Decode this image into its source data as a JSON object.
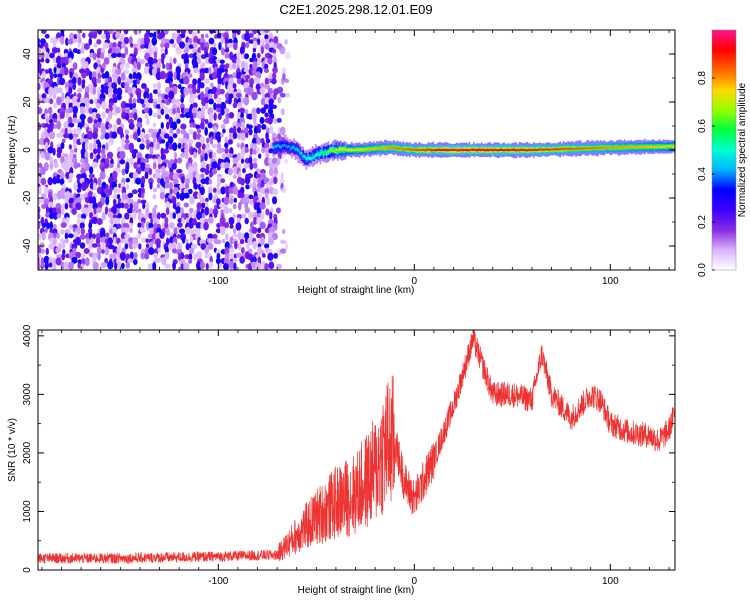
{
  "title": "C2E1.2025.298.12.01.E09",
  "chart_data": [
    {
      "type": "heatmap",
      "title": "C2E1.2025.298.12.01.E09",
      "xlabel": "Height of straight line (km)",
      "ylabel": "Frequency (Hz)",
      "xlim": [
        -192,
        133
      ],
      "ylim": [
        -50,
        50
      ],
      "xticks": [
        -100,
        0,
        100
      ],
      "yticks": [
        -40,
        -20,
        0,
        20,
        40
      ],
      "colorbar": {
        "label": "Normalized spectral amplitude",
        "range": [
          0,
          1
        ],
        "ticks": [
          0.0,
          0.2,
          0.4,
          0.6,
          0.8
        ],
        "colors": [
          "#ffffff",
          "#d9b3ff",
          "#8a2be2",
          "#3c00ff",
          "#0000ff",
          "#00b4ff",
          "#00ffd2",
          "#00ff3c",
          "#96ff00",
          "#ffd700",
          "#ff6400",
          "#ff0000",
          "#ff1493"
        ]
      },
      "noise_region": {
        "x_from": -192,
        "x_to": -72,
        "max_amplitude": 0.3
      },
      "signal_ridge": [
        {
          "x": -72,
          "freq": 1,
          "amplitude": 0.45
        },
        {
          "x": -66,
          "freq": 2,
          "amplitude": 0.4
        },
        {
          "x": -60,
          "freq": 0,
          "amplitude": 0.45
        },
        {
          "x": -55,
          "freq": -4,
          "amplitude": 0.5
        },
        {
          "x": -50,
          "freq": -2,
          "amplitude": 0.5
        },
        {
          "x": -40,
          "freq": 0,
          "amplitude": 0.7
        },
        {
          "x": -30,
          "freq": 0,
          "amplitude": 0.75
        },
        {
          "x": -13,
          "freq": 1,
          "amplitude": 0.8
        },
        {
          "x": 0,
          "freq": 0,
          "amplitude": 0.85
        },
        {
          "x": 20,
          "freq": 0,
          "amplitude": 0.95
        },
        {
          "x": 60,
          "freq": 0,
          "amplitude": 0.9
        },
        {
          "x": 100,
          "freq": 1,
          "amplitude": 0.8
        },
        {
          "x": 133,
          "freq": 1.5,
          "amplitude": 0.75
        }
      ]
    },
    {
      "type": "line",
      "xlabel": "Height of straight line (km)",
      "ylabel": "SNR (10 * v/v)",
      "xlim": [
        -192,
        133
      ],
      "ylim": [
        0,
        4100
      ],
      "xticks": [
        -100,
        0,
        100
      ],
      "yticks": [
        0,
        1000,
        2000,
        3000,
        4000
      ],
      "series": [
        {
          "name": "SNR",
          "color": "#ee3333",
          "x": [
            -192,
            -150,
            -100,
            -70,
            -60,
            -50,
            -40,
            -30,
            -20,
            -15,
            -10,
            -5,
            0,
            10,
            20,
            30,
            40,
            50,
            60,
            65,
            70,
            80,
            90,
            95,
            100,
            110,
            120,
            125,
            130,
            133
          ],
          "y": [
            200,
            200,
            230,
            260,
            600,
            900,
            1150,
            1300,
            1700,
            2100,
            2200,
            1500,
            1200,
            1900,
            2800,
            3950,
            3000,
            3000,
            2900,
            3700,
            3000,
            2600,
            3000,
            2900,
            2500,
            2350,
            2300,
            2200,
            2400,
            2700
          ]
        }
      ]
    }
  ]
}
